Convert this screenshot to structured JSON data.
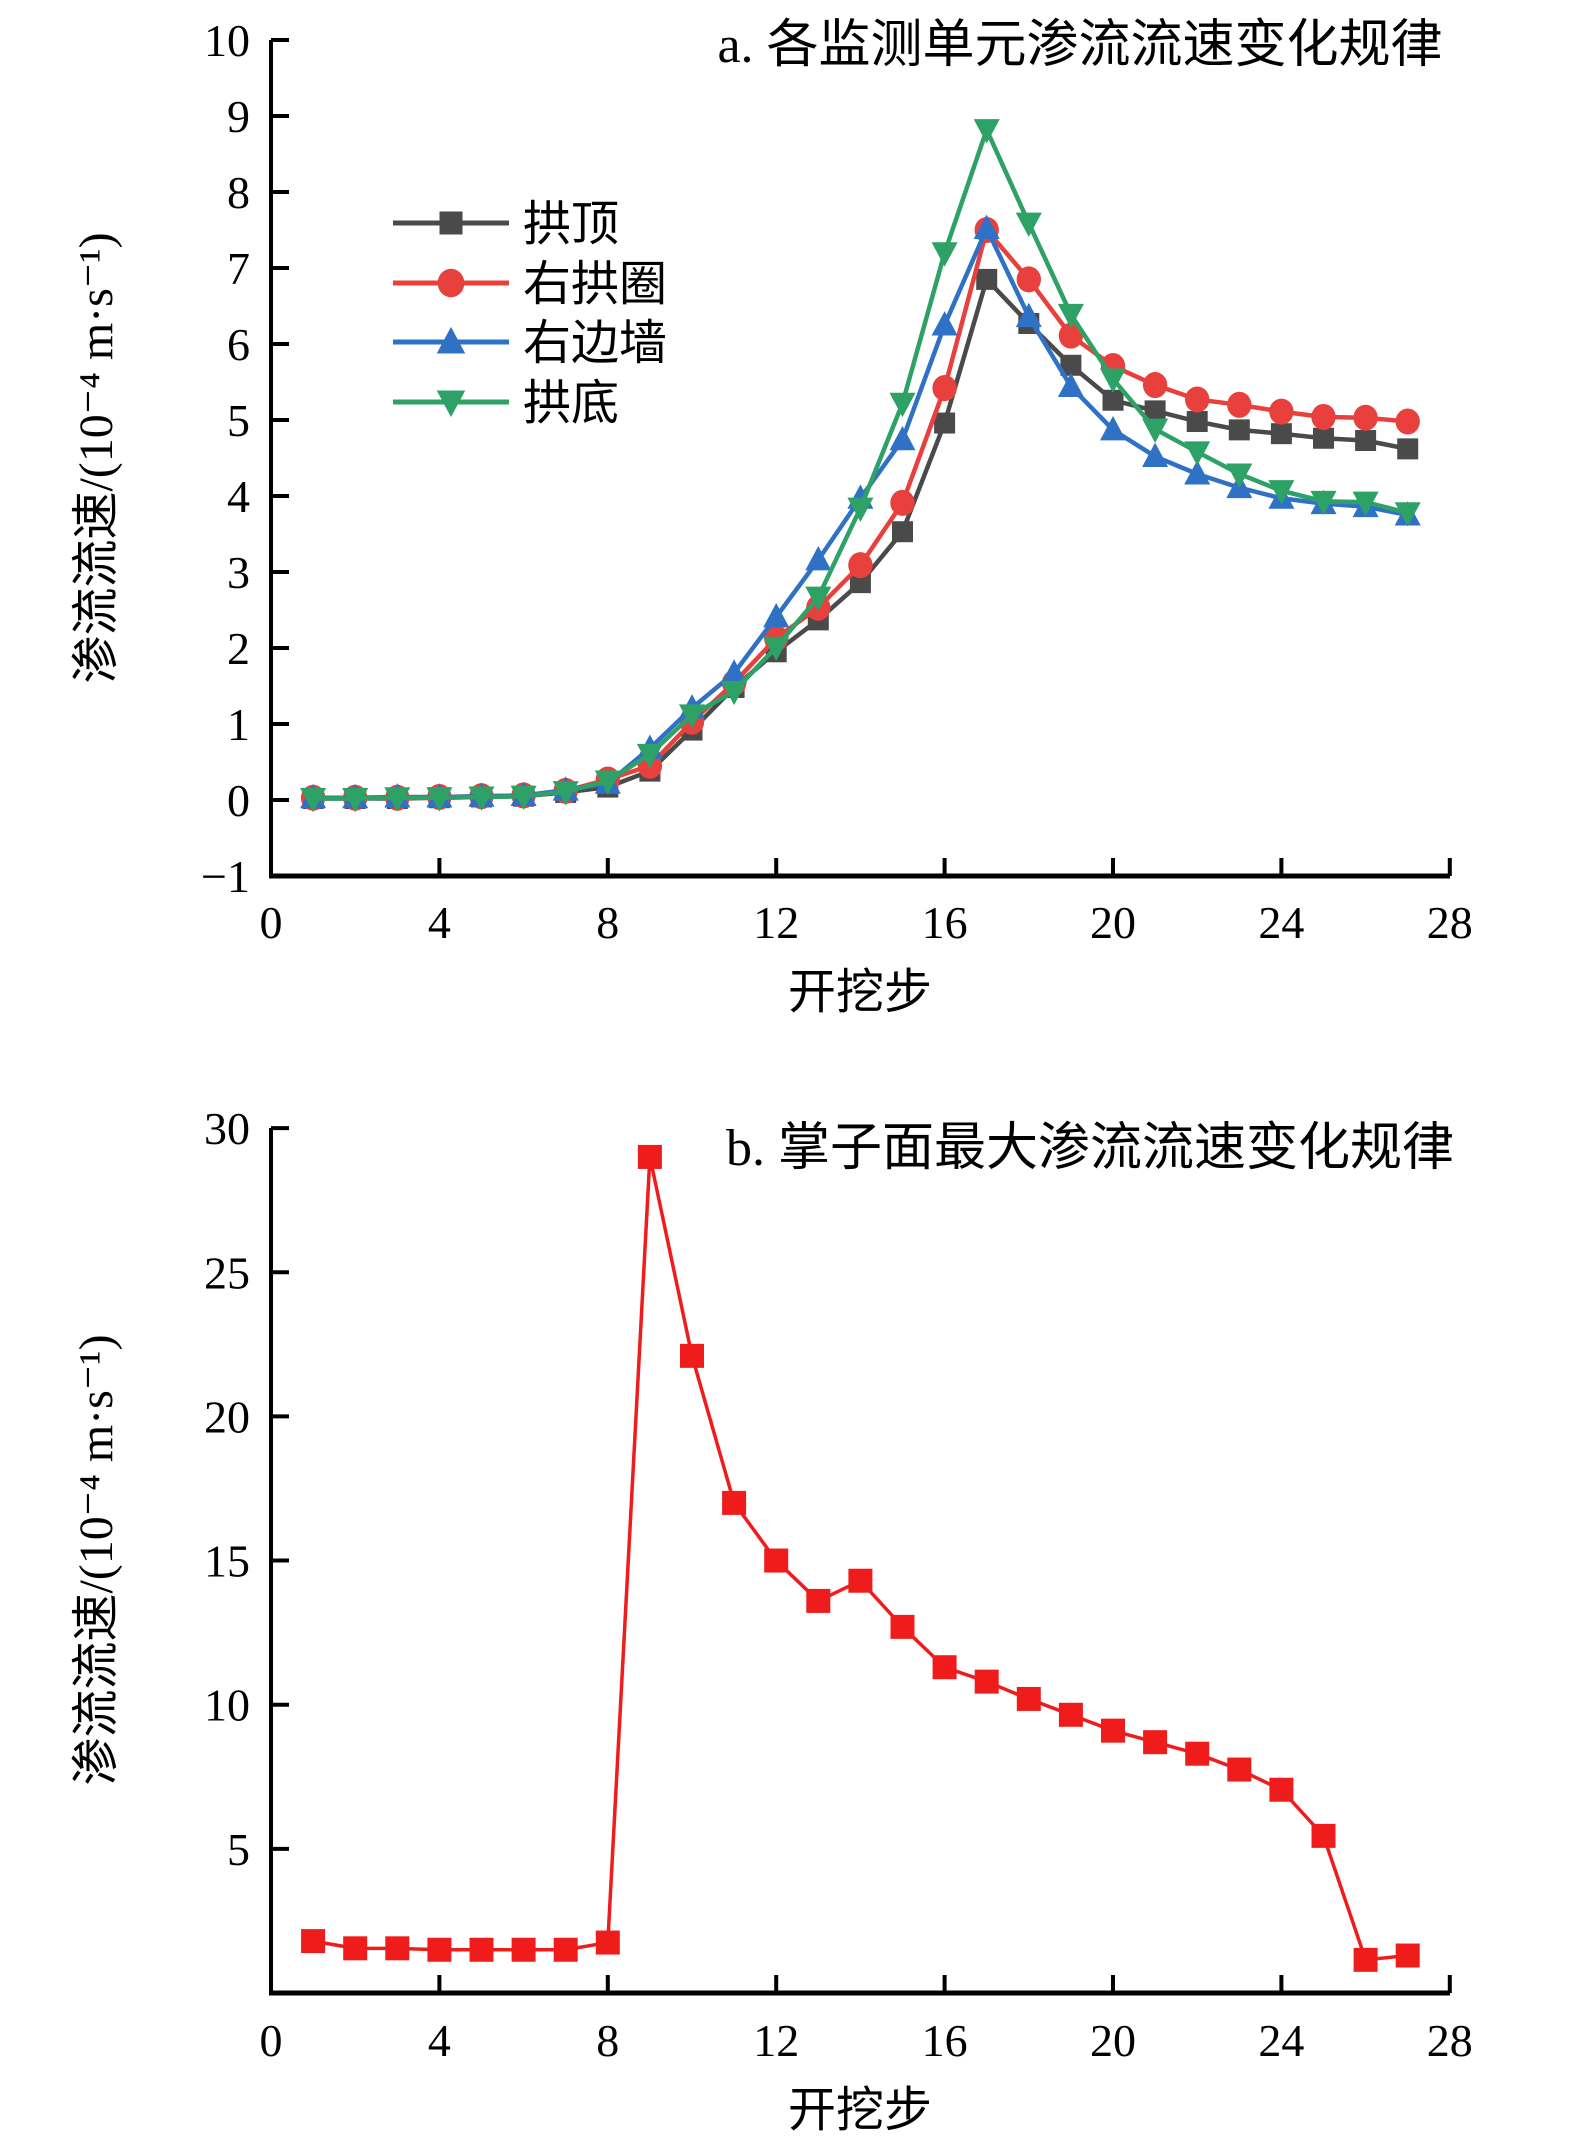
{
  "figure": {
    "background": "#ffffff",
    "axis_color": "#000000"
  },
  "chart_data": [
    {
      "id": "a",
      "type": "line",
      "title": "a. 各监测单元渗流流速变化规律",
      "xlabel": "开挖步",
      "ylabel": "渗流流速/(10⁻⁴ m·s⁻¹)",
      "xlim": [
        0,
        28
      ],
      "ylim": [
        -1,
        10
      ],
      "xticks": [
        0,
        4,
        8,
        12,
        16,
        20,
        24,
        28
      ],
      "yticks": [
        -1,
        0,
        1,
        2,
        3,
        4,
        5,
        6,
        7,
        8,
        9,
        10
      ],
      "grid": false,
      "legend_position": "upper-left-inside",
      "x": [
        1,
        2,
        3,
        4,
        5,
        6,
        7,
        8,
        9,
        10,
        11,
        12,
        13,
        14,
        15,
        16,
        17,
        18,
        19,
        20,
        21,
        22,
        23,
        24,
        25,
        26,
        27
      ],
      "series": [
        {
          "key": "crown",
          "name": "拱顶",
          "color": "#4a4a4a",
          "marker": "square",
          "values": [
            0.02,
            0.02,
            0.02,
            0.03,
            0.04,
            0.05,
            0.1,
            0.17,
            0.38,
            0.92,
            1.48,
            1.95,
            2.37,
            2.86,
            3.53,
            4.96,
            6.85,
            6.27,
            5.72,
            5.26,
            5.12,
            4.98,
            4.87,
            4.82,
            4.76,
            4.73,
            4.62
          ]
        },
        {
          "key": "right-arch-ring",
          "name": "右拱圈",
          "color": "#e8403d",
          "marker": "circle",
          "values": [
            0.03,
            0.03,
            0.03,
            0.04,
            0.05,
            0.06,
            0.12,
            0.27,
            0.45,
            1.03,
            1.54,
            2.13,
            2.53,
            3.09,
            3.91,
            5.42,
            7.5,
            6.85,
            6.11,
            5.71,
            5.46,
            5.27,
            5.2,
            5.11,
            5.04,
            5.03,
            4.98
          ]
        },
        {
          "key": "right-side-wall",
          "name": "右边墙",
          "color": "#2f72c5",
          "marker": "triangle-up",
          "values": [
            0.03,
            0.03,
            0.04,
            0.04,
            0.05,
            0.06,
            0.13,
            0.22,
            0.68,
            1.21,
            1.67,
            2.41,
            3.16,
            3.97,
            4.74,
            6.25,
            7.52,
            6.36,
            5.44,
            4.87,
            4.52,
            4.29,
            4.11,
            3.97,
            3.9,
            3.86,
            3.75
          ]
        },
        {
          "key": "arch-invert",
          "name": "拱底",
          "color": "#2ea266",
          "marker": "triangle-down",
          "values": [
            0.02,
            0.02,
            0.03,
            0.03,
            0.04,
            0.05,
            0.11,
            0.25,
            0.6,
            1.12,
            1.43,
            2.01,
            2.67,
            3.84,
            5.22,
            7.2,
            8.82,
            7.59,
            6.39,
            5.54,
            4.88,
            4.58,
            4.29,
            4.07,
            3.93,
            3.92,
            3.78
          ]
        }
      ]
    },
    {
      "id": "b",
      "type": "line",
      "title": "b. 掌子面最大渗流流速变化规律",
      "xlabel": "开挖步",
      "ylabel": "渗流流速/(10⁻⁴ m·s⁻¹)",
      "xlim": [
        0,
        28
      ],
      "ylim": [
        0,
        30
      ],
      "xticks": [
        0,
        4,
        8,
        12,
        16,
        20,
        24,
        28
      ],
      "yticks": [
        5,
        10,
        15,
        20,
        25,
        30
      ],
      "grid": false,
      "legend_position": "none",
      "x": [
        1,
        2,
        3,
        4,
        5,
        6,
        7,
        8,
        9,
        10,
        11,
        12,
        13,
        14,
        15,
        16,
        17,
        18,
        19,
        20,
        21,
        22,
        23,
        24,
        25,
        26,
        27
      ],
      "series": [
        {
          "key": "face-max",
          "name": "掌子面最大渗流流速",
          "color": "#f01c1c",
          "marker": "square",
          "values": [
            1.8,
            1.55,
            1.55,
            1.5,
            1.5,
            1.5,
            1.5,
            1.75,
            29.0,
            22.1,
            17.0,
            15.0,
            13.6,
            14.3,
            12.7,
            11.3,
            10.8,
            10.2,
            9.65,
            9.1,
            8.7,
            8.3,
            7.75,
            7.05,
            5.45,
            1.15,
            1.3
          ]
        }
      ]
    }
  ]
}
